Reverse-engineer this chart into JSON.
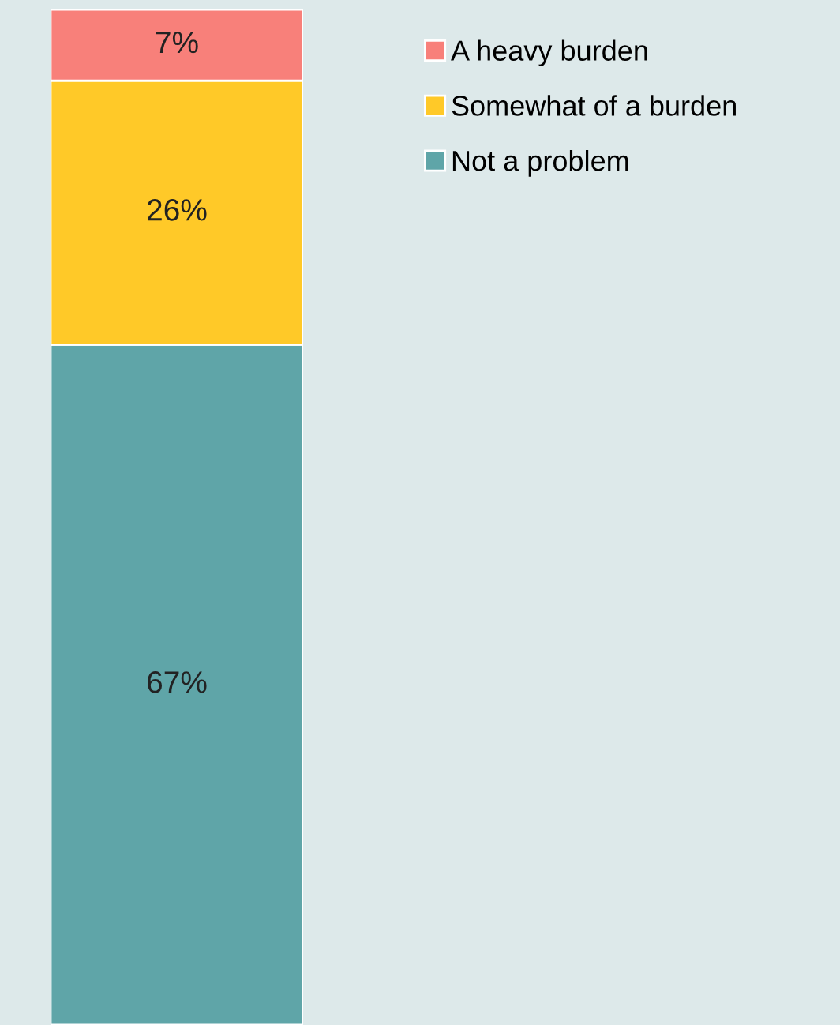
{
  "chart_data": {
    "type": "bar",
    "stacked": true,
    "categories": [
      null
    ],
    "legend": "right",
    "series": [
      {
        "name": "Not a problem",
        "color": "#5fa5a8",
        "values": [
          67
        ],
        "value_labels": [
          "67%"
        ]
      },
      {
        "name": "Somewhat of a burden",
        "color": "#ffc928",
        "values": [
          26
        ],
        "value_labels": [
          "26%"
        ]
      },
      {
        "name": "A heavy burden",
        "color": "#f8807a",
        "values": [
          7
        ],
        "value_labels": [
          "7%"
        ]
      }
    ]
  }
}
